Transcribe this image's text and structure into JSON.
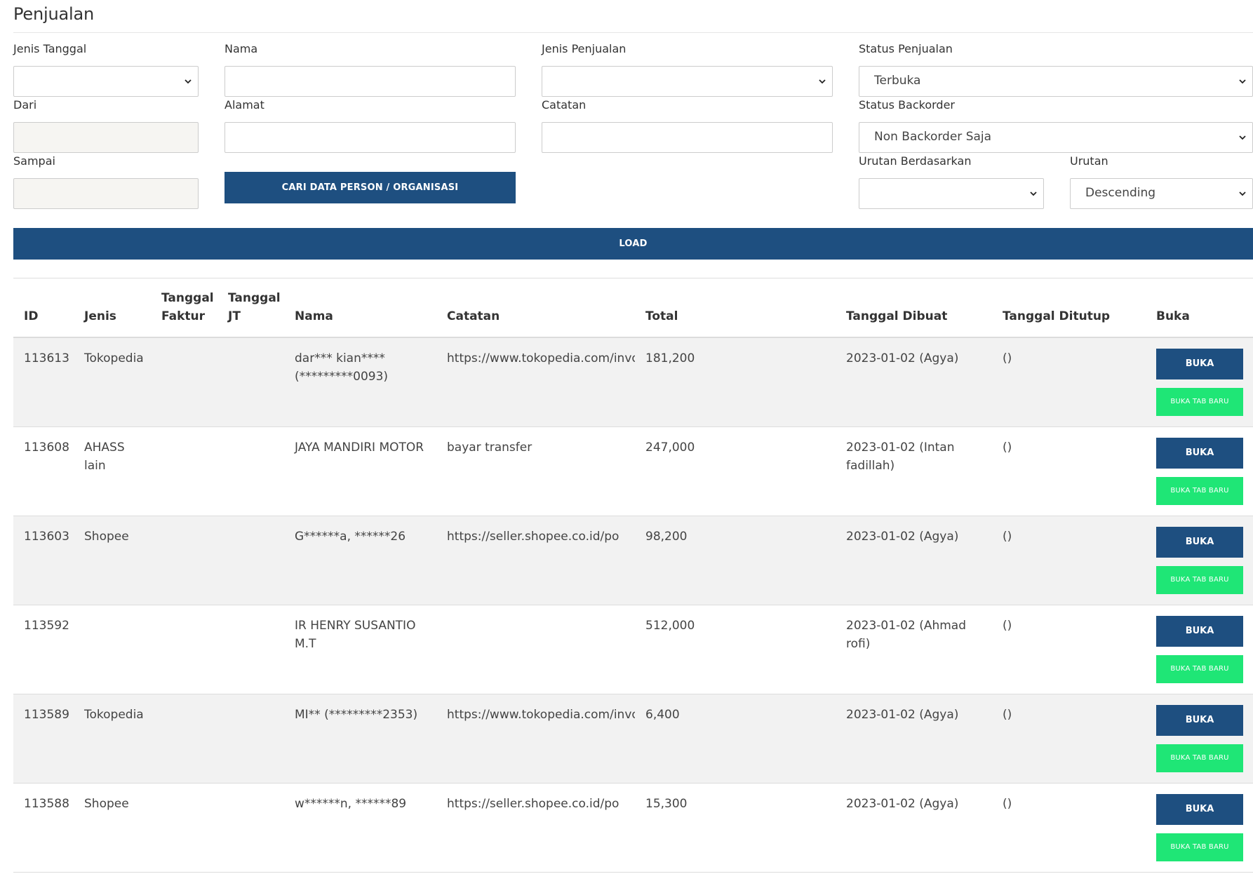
{
  "page": {
    "title": "Penjualan"
  },
  "filters": {
    "jenis_tanggal": {
      "label": "Jenis Tanggal",
      "value": ""
    },
    "dari": {
      "label": "Dari",
      "value": ""
    },
    "sampai": {
      "label": "Sampai",
      "value": ""
    },
    "nama": {
      "label": "Nama",
      "value": ""
    },
    "alamat": {
      "label": "Alamat",
      "value": ""
    },
    "cari_button": "CARI DATA PERSON / ORGANISASI",
    "jenis_penjualan": {
      "label": "Jenis Penjualan",
      "value": ""
    },
    "catatan": {
      "label": "Catatan",
      "value": ""
    },
    "status_penjualan": {
      "label": "Status Penjualan",
      "value": "Terbuka"
    },
    "status_backorder": {
      "label": "Status Backorder",
      "value": "Non Backorder Saja"
    },
    "urutan_berdasarkan": {
      "label": "Urutan Berdasarkan",
      "value": ""
    },
    "urutan": {
      "label": "Urutan",
      "value": "Descending"
    },
    "load_button": "LOAD"
  },
  "table": {
    "headers": {
      "id": "ID",
      "jenis": "Jenis",
      "tanggal_faktur_1": "Tanggal",
      "tanggal_faktur_2": "Faktur",
      "tanggal_jt_1": "Tanggal",
      "tanggal_jt_2": "JT",
      "nama": "Nama",
      "catatan": "Catatan",
      "total": "Total",
      "tanggal_dibuat": "Tanggal Dibuat",
      "tanggal_ditutup": "Tanggal Ditutup",
      "buka": "Buka"
    },
    "open_label": "BUKA",
    "open_new_tab_label": "BUKA TAB BARU",
    "rows": [
      {
        "id": "113613",
        "jenis": "Tokopedia",
        "tanggal_faktur": "",
        "tanggal_jt": "",
        "nama": "dar*** kian**** (*********0093)",
        "catatan": "https://www.tokopedia.com/invo",
        "total": "181,200",
        "tanggal_dibuat": "2023-01-02 (Agya)",
        "tanggal_ditutup": "()"
      },
      {
        "id": "113608",
        "jenis": "AHASS lain",
        "tanggal_faktur": "",
        "tanggal_jt": "",
        "nama": "JAYA MANDIRI MOTOR",
        "catatan": "bayar transfer",
        "total": "247,000",
        "tanggal_dibuat": "2023-01-02 (Intan fadillah)",
        "tanggal_ditutup": "()"
      },
      {
        "id": "113603",
        "jenis": "Shopee",
        "tanggal_faktur": "",
        "tanggal_jt": "",
        "nama": "G******a, ******26",
        "catatan": "https://seller.shopee.co.id/po",
        "total": "98,200",
        "tanggal_dibuat": "2023-01-02 (Agya)",
        "tanggal_ditutup": "()"
      },
      {
        "id": "113592",
        "jenis": "",
        "tanggal_faktur": "",
        "tanggal_jt": "",
        "nama": "IR HENRY SUSANTIO M.T",
        "catatan": "",
        "total": "512,000",
        "tanggal_dibuat": "2023-01-02 (Ahmad rofi)",
        "tanggal_ditutup": "()"
      },
      {
        "id": "113589",
        "jenis": "Tokopedia",
        "tanggal_faktur": "",
        "tanggal_jt": "",
        "nama": "MI** (*********2353)",
        "catatan": "https://www.tokopedia.com/invo",
        "total": "6,400",
        "tanggal_dibuat": "2023-01-02 (Agya)",
        "tanggal_ditutup": "()"
      },
      {
        "id": "113588",
        "jenis": "Shopee",
        "tanggal_faktur": "",
        "tanggal_jt": "",
        "nama": "w******n, ******89",
        "catatan": "https://seller.shopee.co.id/po",
        "total": "15,300",
        "tanggal_dibuat": "2023-01-02 (Agya)",
        "tanggal_ditutup": "()"
      }
    ]
  }
}
